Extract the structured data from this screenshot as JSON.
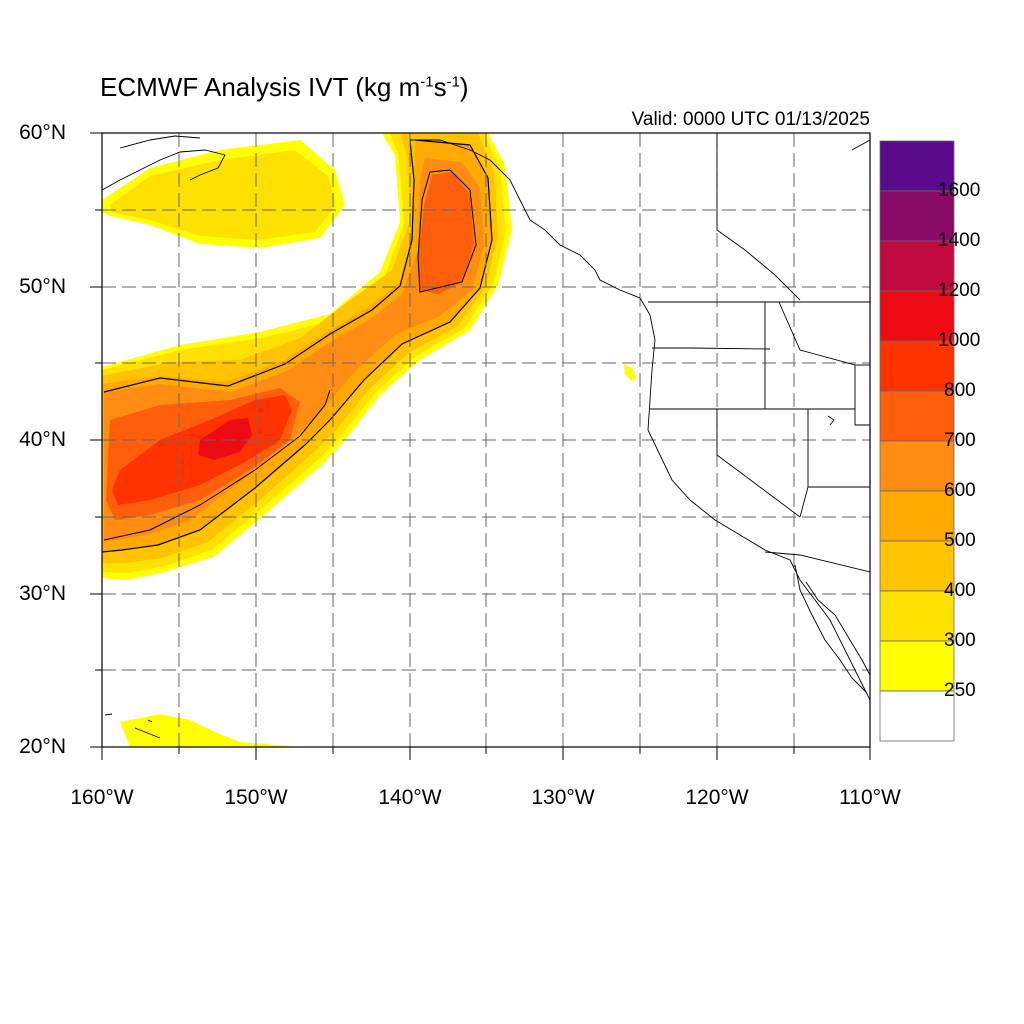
{
  "title": {
    "main": "ECMWF Analysis IVT (kg m",
    "exp1": "-1",
    "mid": "s",
    "exp2": "-1",
    "close": ")"
  },
  "valid_time": "Valid: 0000 UTC 01/13/2025",
  "map": {
    "projection": "cylindrical-equidistant",
    "lon_range": [
      -160,
      -110
    ],
    "lat_range": [
      20,
      60
    ],
    "grid": "dashed every 5 degrees",
    "lat_labels": [
      "60°N",
      "50°N",
      "40°N",
      "30°N",
      "20°N"
    ],
    "lon_labels": [
      "160°W",
      "150°W",
      "140°W",
      "130°W",
      "120°W",
      "110°W"
    ]
  },
  "colorbar": {
    "labels": [
      "1600",
      "1400",
      "1200",
      "1000",
      "800",
      "700",
      "600",
      "500",
      "400",
      "300",
      "250"
    ],
    "colors": [
      "#5a0a8a",
      "#8a0a68",
      "#c00a40",
      "#ee0c14",
      "#ff3300",
      "#ff5e0a",
      "#ff8d14",
      "#ffaa00",
      "#ffc300",
      "#ffe100",
      "#ffff00",
      "#ffffff"
    ],
    "legend_placement": "right"
  },
  "features": {
    "atmospheric_river": "IVT plume from ~160°W 35°N curving northeast to ~137°W 55°N",
    "contour_levels": [
      250,
      500
    ]
  }
}
